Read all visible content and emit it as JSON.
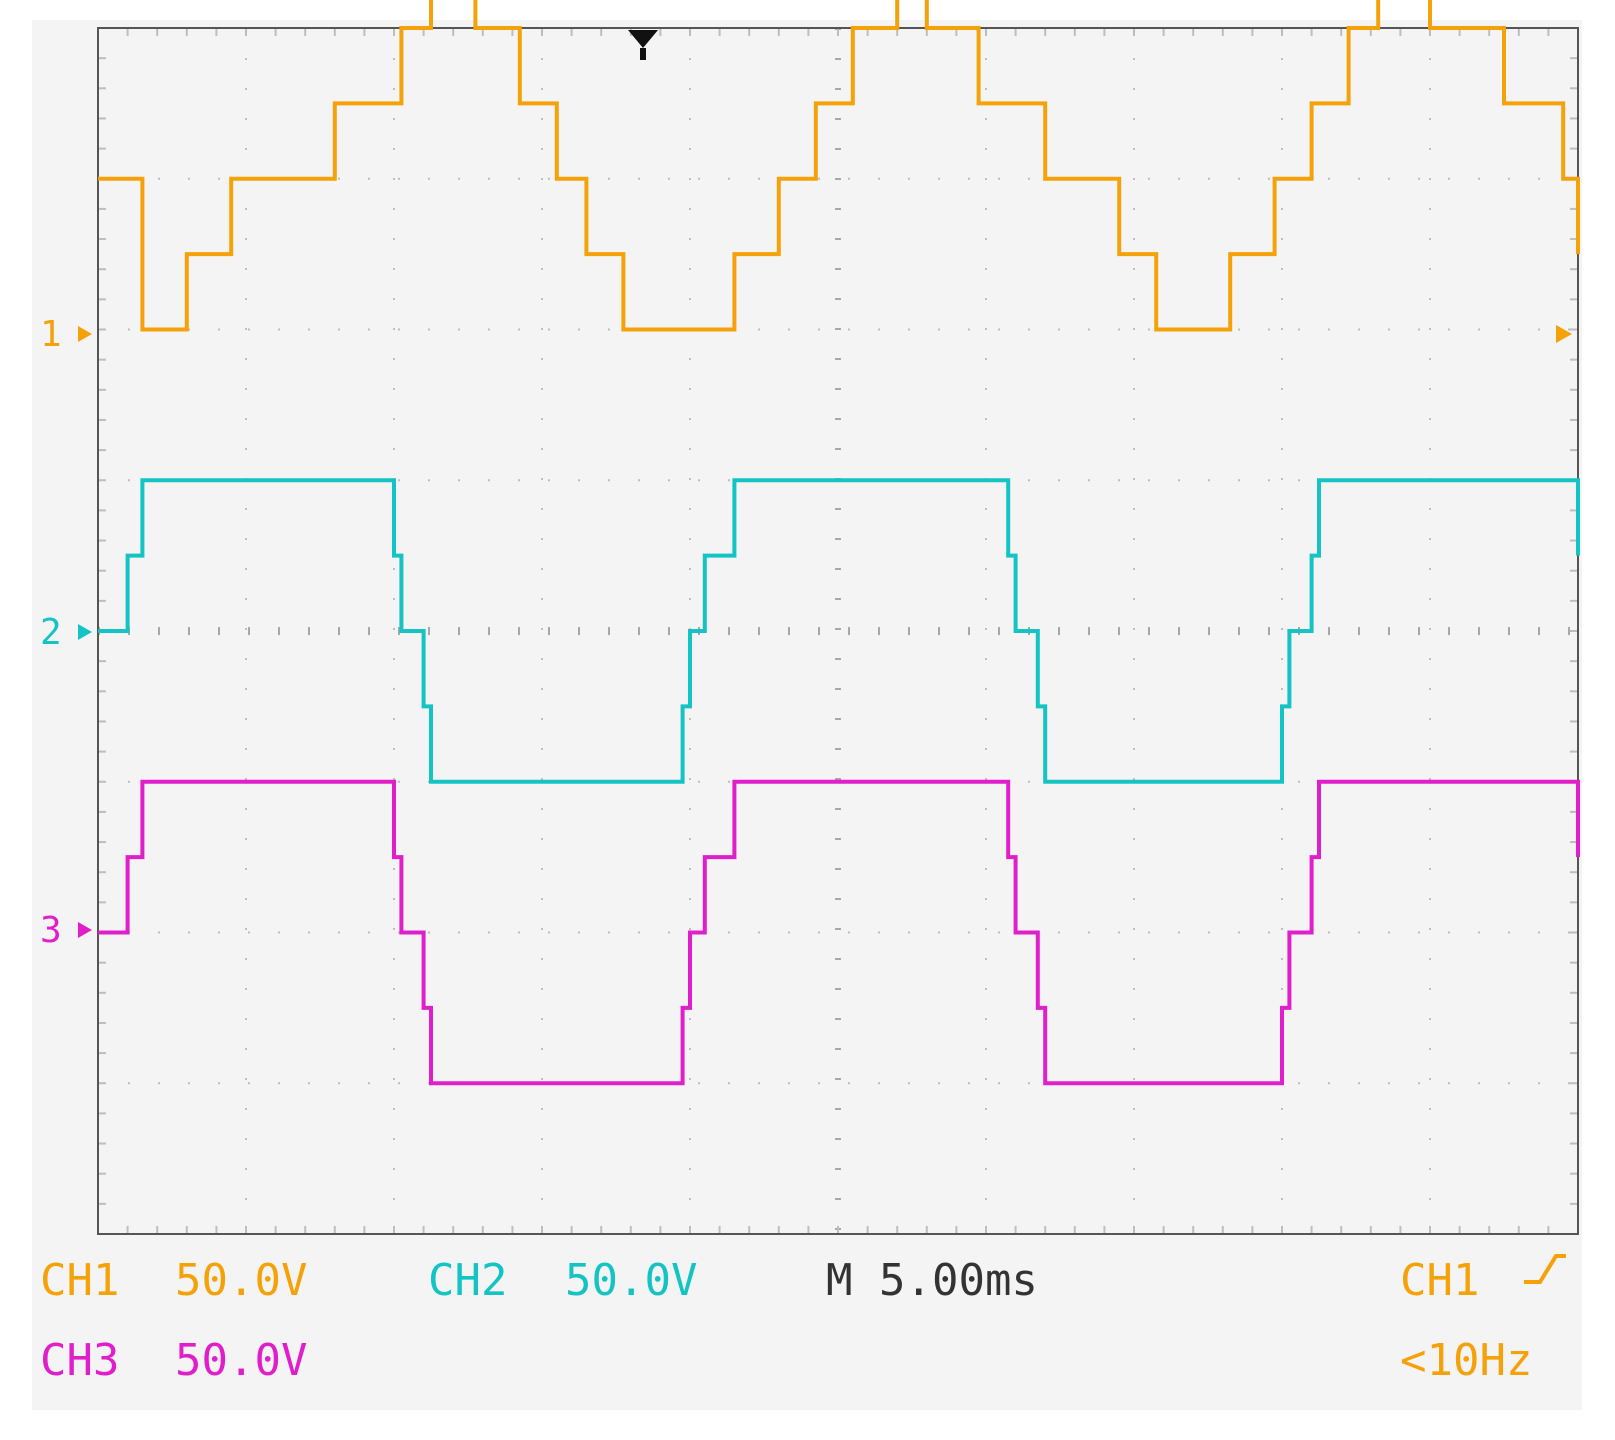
{
  "colors": {
    "ch1": "#f5a20a",
    "ch2": "#14c3c3",
    "ch3": "#e01fcb",
    "text_dark": "#333333",
    "background": "#f4f4f4",
    "grid": "#bdbdbd"
  },
  "readout": {
    "ch1_name": "CH1",
    "ch1_scale": "50.0V",
    "ch2_name": "CH2",
    "ch2_scale": "50.0V",
    "timebase": "M 5.00ms",
    "trigger_source": "CH1",
    "ch3_name": "CH3",
    "ch3_scale": "50.0V",
    "trigger_freq": "<10Hz"
  },
  "markers": {
    "ch1": "1",
    "ch2": "2",
    "ch3": "3"
  },
  "chart_data": {
    "type": "line",
    "x_unit": "div",
    "y_unit": "div",
    "xlim": [
      0,
      10
    ],
    "ylim": [
      -4,
      4
    ],
    "grid": true,
    "series": [
      {
        "name": "CH1",
        "ground_div": 2,
        "x": [
          0,
          0.3,
          0.55,
          0.6,
          0.9,
          1.6,
          2.05,
          2.25,
          2.55,
          2.85,
          3.1,
          3.3,
          3.55,
          3.9,
          4.3,
          4.6,
          4.85,
          5.1,
          5.4,
          5.6,
          5.95,
          6.4,
          6.9,
          7.15,
          7.35,
          7.65,
          7.95,
          8.2,
          8.45,
          8.65,
          9.0,
          9.5,
          9.9,
          10
        ],
        "y": [
          1.0,
          0.0,
          0.0,
          0.5,
          1.0,
          1.5,
          2.0,
          2.5,
          2.0,
          1.5,
          1.0,
          0.5,
          0.0,
          0.0,
          0.5,
          1.0,
          1.5,
          2.0,
          2.5,
          2.0,
          1.5,
          1.0,
          0.5,
          0.0,
          0.0,
          0.5,
          1.0,
          1.5,
          2.0,
          2.5,
          2.0,
          1.5,
          1.0,
          0.5
        ]
      },
      {
        "name": "CH2",
        "ground_div": 0,
        "x": [
          0,
          0.15,
          0.2,
          0.3,
          1.9,
          2.0,
          2.05,
          2.2,
          2.25,
          2.4,
          3.9,
          3.95,
          4.0,
          4.1,
          4.15,
          4.3,
          6.0,
          6.15,
          6.2,
          6.35,
          6.4,
          6.5,
          7.9,
          8.0,
          8.05,
          8.2,
          8.25,
          8.4,
          10
        ],
        "y": [
          0.0,
          0.0,
          0.5,
          1.0,
          1.0,
          0.5,
          0.0,
          -0.5,
          -1.0,
          -1.0,
          -1.0,
          -0.5,
          0.0,
          0.5,
          0.5,
          1.0,
          1.0,
          0.5,
          0.0,
          -0.5,
          -1.0,
          -1.0,
          -1.0,
          -0.5,
          0.0,
          0.5,
          1.0,
          1.0,
          0.5
        ]
      },
      {
        "name": "CH3",
        "ground_div": -2,
        "x": [
          0,
          0.15,
          0.2,
          0.3,
          1.9,
          2.0,
          2.05,
          2.2,
          2.25,
          2.4,
          3.9,
          3.95,
          4.0,
          4.1,
          4.15,
          4.3,
          6.0,
          6.15,
          6.2,
          6.35,
          6.4,
          6.5,
          7.9,
          8.0,
          8.05,
          8.2,
          8.25,
          8.4,
          10
        ],
        "y": [
          0.0,
          0.0,
          0.5,
          1.0,
          1.0,
          0.5,
          0.0,
          -0.5,
          -1.0,
          -1.0,
          -1.0,
          -0.5,
          0.0,
          0.5,
          0.5,
          1.0,
          1.0,
          0.5,
          0.0,
          -0.5,
          -1.0,
          -1.0,
          -1.0,
          -0.5,
          0.0,
          0.5,
          1.0,
          1.0,
          0.5
        ]
      }
    ]
  }
}
